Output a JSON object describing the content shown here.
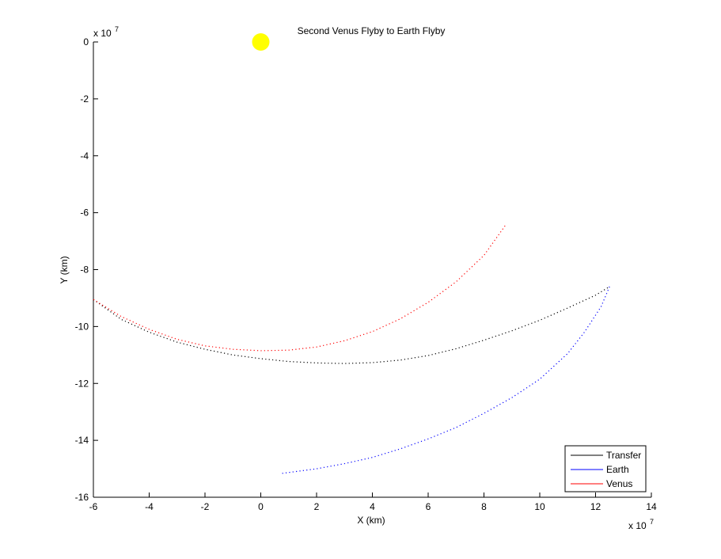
{
  "chart_data": {
    "type": "line",
    "title": "Second Venus Flyby to Earth Flyby",
    "xlabel": "X (km)",
    "ylabel": "Y (km)",
    "x_exponent_label": "x 10",
    "x_exponent": "7",
    "y_exponent_label": "x 10",
    "y_exponent": "7",
    "xlim": [
      -6,
      14
    ],
    "ylim": [
      -16,
      0
    ],
    "xticks": [
      -6,
      -4,
      -2,
      0,
      2,
      4,
      6,
      8,
      10,
      12,
      14
    ],
    "yticks": [
      0,
      -2,
      -4,
      -6,
      -8,
      -10,
      -12,
      -14,
      -16
    ],
    "grid": false,
    "legend_position": "bottom-right",
    "line_style": "dotted",
    "sun": {
      "x": 0,
      "y": 0,
      "color": "#ffff00"
    },
    "series": [
      {
        "name": "Transfer",
        "color": "#000000",
        "points": [
          [
            -6.0,
            -9.05
          ],
          [
            -5,
            -9.75
          ],
          [
            -4,
            -10.2
          ],
          [
            -3,
            -10.55
          ],
          [
            -2,
            -10.8
          ],
          [
            -1,
            -11.0
          ],
          [
            0,
            -11.13
          ],
          [
            1,
            -11.23
          ],
          [
            2,
            -11.28
          ],
          [
            3,
            -11.3
          ],
          [
            4,
            -11.27
          ],
          [
            5,
            -11.18
          ],
          [
            6,
            -11.02
          ],
          [
            7,
            -10.78
          ],
          [
            8,
            -10.48
          ],
          [
            9,
            -10.15
          ],
          [
            10,
            -9.78
          ],
          [
            11,
            -9.35
          ],
          [
            12,
            -8.9
          ],
          [
            12.5,
            -8.6
          ]
        ]
      },
      {
        "name": "Earth",
        "color": "#0000ff",
        "points": [
          [
            12.5,
            -8.6
          ],
          [
            12.2,
            -9.3
          ],
          [
            11.6,
            -10.2
          ],
          [
            11,
            -10.95
          ],
          [
            10,
            -11.85
          ],
          [
            9,
            -12.5
          ],
          [
            8,
            -13.05
          ],
          [
            7,
            -13.55
          ],
          [
            6,
            -13.95
          ],
          [
            5,
            -14.3
          ],
          [
            4,
            -14.6
          ],
          [
            3,
            -14.82
          ],
          [
            2,
            -15.0
          ],
          [
            1,
            -15.13
          ],
          [
            0.7,
            -15.17
          ]
        ]
      },
      {
        "name": "Venus",
        "color": "#ff0000",
        "points": [
          [
            -6.0,
            -9.05
          ],
          [
            -5,
            -9.65
          ],
          [
            -4,
            -10.1
          ],
          [
            -3,
            -10.45
          ],
          [
            -2,
            -10.68
          ],
          [
            -1,
            -10.8
          ],
          [
            0,
            -10.85
          ],
          [
            1,
            -10.83
          ],
          [
            2,
            -10.72
          ],
          [
            3,
            -10.5
          ],
          [
            4,
            -10.18
          ],
          [
            5,
            -9.73
          ],
          [
            6,
            -9.15
          ],
          [
            7,
            -8.43
          ],
          [
            8,
            -7.5
          ],
          [
            8.8,
            -6.4
          ]
        ]
      }
    ]
  }
}
